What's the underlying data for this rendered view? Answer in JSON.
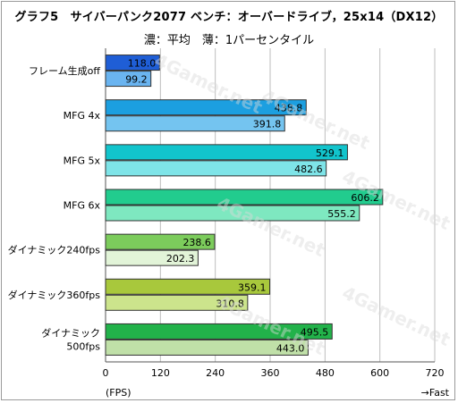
{
  "title": "グラフ5　サイバーパンク2077 ベンチ：オーバードライブ，25x14（DX12）",
  "subtitle": "濃：平均　薄：1パーセンタイル",
  "chart_data": {
    "type": "bar",
    "orientation": "horizontal",
    "categories": [
      [
        "フレーム生成off"
      ],
      [
        "MFG 4x"
      ],
      [
        "MFG 5x"
      ],
      [
        "MFG 6x"
      ],
      [
        "ダイナミック240fps"
      ],
      [
        "ダイナミック360fps"
      ],
      [
        "ダイナミック",
        "500fps"
      ]
    ],
    "series": [
      {
        "name": "平均",
        "values": [
          118.0,
          438.8,
          529.1,
          606.2,
          238.6,
          359.1,
          495.5
        ]
      },
      {
        "name": "1パーセンタイル",
        "values": [
          99.2,
          391.8,
          482.6,
          555.2,
          202.3,
          310.8,
          443.0
        ]
      }
    ],
    "value_labels": [
      [
        "118.0",
        "438.8",
        "529.1",
        "606.2",
        "238.6",
        "359.1",
        "495.5"
      ],
      [
        "99.2",
        "391.8",
        "482.6",
        "555.2",
        "202.3",
        "310.8",
        "443.0"
      ]
    ],
    "colors": {
      "dark": [
        "#1f5ed6",
        "#1c9fe0",
        "#12c4cc",
        "#22cc8e",
        "#7ccc5c",
        "#a8c83c",
        "#22b24a"
      ],
      "light": [
        "#6ab4f0",
        "#74c4f0",
        "#7ee4e8",
        "#7ee8c0",
        "#e2f4d8",
        "#cce48c",
        "#c0e0a8"
      ]
    },
    "xlim": [
      0,
      720
    ],
    "xticks": [
      0,
      120,
      240,
      360,
      480,
      600,
      720
    ],
    "xlabel": "(FPS)",
    "xlabel_right": "→Fast",
    "grid": true,
    "watermark": "4Gamer.net"
  }
}
